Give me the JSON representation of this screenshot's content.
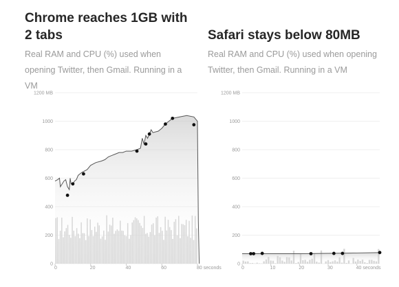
{
  "chart_data": [
    {
      "type": "line",
      "title": "Chrome reaches 1GB with 2 tabs",
      "subtitle": "Real RAM and CPU (%) used when opening Twitter, then Gmail. Running in a VM",
      "x_tick_labels": [
        "0",
        "20",
        "40",
        "60",
        "80 seconds"
      ],
      "y_tick_labels": [
        "0",
        "200",
        "400",
        "600",
        "800",
        "1000",
        "1200 MB"
      ],
      "xlim": [
        0,
        80
      ],
      "ylim": [
        0,
        1200
      ],
      "ram_series": [
        {
          "x": 0,
          "y": 580
        },
        {
          "x": 1.5,
          "y": 590
        },
        {
          "x": 2.5,
          "y": 600
        },
        {
          "x": 3,
          "y": 540
        },
        {
          "x": 5,
          "y": 580
        },
        {
          "x": 6,
          "y": 590
        },
        {
          "x": 7,
          "y": 540
        },
        {
          "x": 8,
          "y": 520
        },
        {
          "x": 8.5,
          "y": 600
        },
        {
          "x": 9,
          "y": 560
        },
        {
          "x": 10,
          "y": 560
        },
        {
          "x": 11,
          "y": 580
        },
        {
          "x": 12,
          "y": 590
        },
        {
          "x": 13,
          "y": 620
        },
        {
          "x": 15,
          "y": 640
        },
        {
          "x": 18,
          "y": 660
        },
        {
          "x": 20,
          "y": 690
        },
        {
          "x": 23,
          "y": 710
        },
        {
          "x": 26,
          "y": 720
        },
        {
          "x": 28,
          "y": 730
        },
        {
          "x": 30,
          "y": 750
        },
        {
          "x": 32,
          "y": 760
        },
        {
          "x": 34,
          "y": 770
        },
        {
          "x": 36,
          "y": 780
        },
        {
          "x": 38,
          "y": 780
        },
        {
          "x": 40,
          "y": 790
        },
        {
          "x": 43,
          "y": 790
        },
        {
          "x": 46,
          "y": 800
        },
        {
          "x": 48,
          "y": 810
        },
        {
          "x": 49,
          "y": 880
        },
        {
          "x": 50,
          "y": 840
        },
        {
          "x": 51,
          "y": 900
        },
        {
          "x": 52,
          "y": 880
        },
        {
          "x": 53,
          "y": 910
        },
        {
          "x": 54,
          "y": 940
        },
        {
          "x": 55,
          "y": 920
        },
        {
          "x": 58,
          "y": 930
        },
        {
          "x": 60,
          "y": 950
        },
        {
          "x": 62,
          "y": 980
        },
        {
          "x": 64,
          "y": 1000
        },
        {
          "x": 66,
          "y": 1020
        },
        {
          "x": 70,
          "y": 1030
        },
        {
          "x": 74,
          "y": 1040
        },
        {
          "x": 78,
          "y": 1030
        },
        {
          "x": 80,
          "y": 1000
        },
        {
          "x": 80.5,
          "y": 300
        },
        {
          "x": 81,
          "y": 0
        }
      ],
      "markers": [
        {
          "x": 7,
          "y": 480
        },
        {
          "x": 10,
          "y": 560
        },
        {
          "x": 16,
          "y": 630
        },
        {
          "x": 46,
          "y": 790
        },
        {
          "x": 51,
          "y": 840
        },
        {
          "x": 53,
          "y": 910
        },
        {
          "x": 62,
          "y": 980
        },
        {
          "x": 66,
          "y": 1020
        },
        {
          "x": 78,
          "y": 975
        }
      ],
      "cpu_range": [
        160,
        340
      ],
      "cpu_bar_count": 95
    },
    {
      "type": "line",
      "title": "Safari stays below 80MB",
      "subtitle": "Real RAM and CPU (%) used when opening Twitter, then Gmail. Running in a VM",
      "x_tick_labels": [
        "0",
        "10",
        "20",
        "30",
        "40 seconds"
      ],
      "y_tick_labels": [
        "0",
        "200",
        "400",
        "600",
        "800",
        "1000",
        "1200 MB"
      ],
      "xlim": [
        0,
        48
      ],
      "ylim": [
        0,
        1200
      ],
      "ram_series": [
        {
          "x": 0,
          "y": 70
        },
        {
          "x": 10,
          "y": 70
        },
        {
          "x": 20,
          "y": 70
        },
        {
          "x": 30,
          "y": 72
        },
        {
          "x": 40,
          "y": 75
        },
        {
          "x": 48,
          "y": 78
        }
      ],
      "markers": [
        {
          "x": 3,
          "y": 70
        },
        {
          "x": 4,
          "y": 70
        },
        {
          "x": 7,
          "y": 72
        },
        {
          "x": 24,
          "y": 70
        },
        {
          "x": 32,
          "y": 72
        },
        {
          "x": 35,
          "y": 72
        },
        {
          "x": 48,
          "y": 78
        }
      ],
      "cpu_range": [
        0,
        110
      ],
      "cpu_bar_count": 60
    }
  ]
}
